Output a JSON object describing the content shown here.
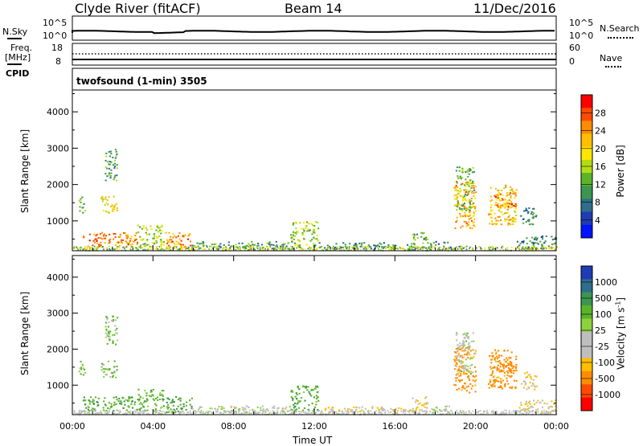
{
  "header": {
    "station": "Clyde River (fitACF)",
    "beam": "Beam 14",
    "date": "11/Dec/2016"
  },
  "nsky_panel": {
    "label": "N.Sky",
    "right_label": "N.Search",
    "left_ticks": [
      "10^5",
      "10^0"
    ],
    "right_ticks": [
      "10^5",
      "10^0"
    ]
  },
  "freq_panel": {
    "label_line1": "Freq.",
    "label_line2": "[MHz]",
    "left_ticks": [
      "18",
      "8"
    ],
    "right_label": "Nave",
    "right_ticks": [
      "60",
      "0"
    ]
  },
  "cpid_panel": {
    "label": "CPID",
    "program": "twofsound (1-min) 3505"
  },
  "chart_data": [
    {
      "type": "heatmap",
      "parameter": "Power",
      "ylabel": "Slant Range [km]",
      "yticks": [
        1000,
        2000,
        3000,
        4000
      ],
      "ylim": [
        180,
        4600
      ],
      "colorbar_label": "Power [dB]",
      "colorbar_ticks": [
        "28",
        "24",
        "20",
        "16",
        "12",
        "8",
        "4"
      ],
      "colorbar_colors": [
        "#ff0000",
        "#ff4a00",
        "#ff8c00",
        "#ffbe00",
        "#ffe600",
        "#b4dc14",
        "#5ab428",
        "#3c9650",
        "#2d6e8c",
        "#1e3cb4",
        "#0014ff"
      ],
      "regions": [
        {
          "t0": 0.5,
          "t1": 3.2,
          "r0": 300,
          "r1": 700,
          "v": 24
        },
        {
          "t0": 0.3,
          "t1": 0.6,
          "r0": 1200,
          "r1": 1700,
          "v": 12
        },
        {
          "t0": 1.4,
          "t1": 2.2,
          "r0": 1200,
          "r1": 1700,
          "v": 18
        },
        {
          "t0": 1.6,
          "t1": 2.2,
          "r0": 2100,
          "r1": 3000,
          "v": 10
        },
        {
          "t0": 3.2,
          "t1": 4.5,
          "r0": 300,
          "r1": 900,
          "v": 14
        },
        {
          "t0": 4.6,
          "t1": 5.9,
          "r0": 250,
          "r1": 700,
          "v": 24
        },
        {
          "t0": 5.9,
          "t1": 10.8,
          "r0": 250,
          "r1": 450,
          "v": 10
        },
        {
          "t0": 10.8,
          "t1": 12.2,
          "r0": 300,
          "r1": 1000,
          "v": 14
        },
        {
          "t0": 12.2,
          "t1": 16.8,
          "r0": 250,
          "r1": 420,
          "v": 8
        },
        {
          "t0": 16.8,
          "t1": 17.6,
          "r0": 250,
          "r1": 700,
          "v": 12
        },
        {
          "t0": 17.6,
          "t1": 18.8,
          "r0": 250,
          "r1": 450,
          "v": 8
        },
        {
          "t0": 18.9,
          "t1": 20.0,
          "r0": 800,
          "r1": 2100,
          "v": 22
        },
        {
          "t0": 19.0,
          "t1": 19.9,
          "r0": 1300,
          "r1": 2500,
          "v": 12
        },
        {
          "t0": 20.6,
          "t1": 22.0,
          "r0": 900,
          "r1": 2000,
          "v": 20
        },
        {
          "t0": 20.9,
          "t1": 22.0,
          "r0": 1400,
          "r1": 1800,
          "v": 24
        },
        {
          "t0": 22.0,
          "t1": 24.0,
          "r0": 250,
          "r1": 600,
          "v": 8
        },
        {
          "t0": 22.2,
          "t1": 23.0,
          "r0": 900,
          "r1": 1400,
          "v": 8
        }
      ]
    },
    {
      "type": "heatmap",
      "parameter": "Velocity",
      "ylabel": "Slant Range [km]",
      "yticks": [
        1000,
        2000,
        3000,
        4000
      ],
      "ylim": [
        180,
        4600
      ],
      "xlabel": "Time UT",
      "xticks": [
        "00:00",
        "04:00",
        "08:00",
        "12:00",
        "16:00",
        "20:00",
        "00:00"
      ],
      "xlim": [
        0,
        24
      ],
      "colorbar_label": "Velocity [m s^-1]",
      "colorbar_ticks": [
        "1000",
        "500",
        "100",
        "25",
        "-25",
        "-100",
        "-500",
        "-1000"
      ],
      "colorbar_colors": [
        "#1e3cb4",
        "#2d6e8c",
        "#3c9650",
        "#5ab428",
        "#8cd23c",
        "#bebebe",
        "#bebebe",
        "#ffbe00",
        "#ff8c00",
        "#ff4a00",
        "#ff0000"
      ],
      "regions": [
        {
          "t0": 0.5,
          "t1": 3.2,
          "r0": 300,
          "r1": 700,
          "v": 120
        },
        {
          "t0": 0.3,
          "t1": 0.6,
          "r0": 1200,
          "r1": 1700,
          "v": 80
        },
        {
          "t0": 1.4,
          "t1": 2.2,
          "r0": 1200,
          "r1": 1700,
          "v": 60
        },
        {
          "t0": 1.6,
          "t1": 2.2,
          "r0": 2100,
          "r1": 3000,
          "v": 60
        },
        {
          "t0": 3.2,
          "t1": 4.5,
          "r0": 300,
          "r1": 900,
          "v": 100
        },
        {
          "t0": 4.6,
          "t1": 5.9,
          "r0": 250,
          "r1": 700,
          "v": 150
        },
        {
          "t0": 5.9,
          "t1": 10.8,
          "r0": 250,
          "r1": 450,
          "v": 0
        },
        {
          "t0": 10.8,
          "t1": 12.2,
          "r0": 300,
          "r1": 1000,
          "v": 120
        },
        {
          "t0": 12.2,
          "t1": 16.8,
          "r0": 250,
          "r1": 420,
          "v": -60
        },
        {
          "t0": 16.8,
          "t1": 17.6,
          "r0": 250,
          "r1": 700,
          "v": -80
        },
        {
          "t0": 17.6,
          "t1": 18.8,
          "r0": 250,
          "r1": 450,
          "v": 0
        },
        {
          "t0": 18.9,
          "t1": 20.0,
          "r0": 800,
          "r1": 2100,
          "v": -200
        },
        {
          "t0": 19.0,
          "t1": 19.9,
          "r0": 1300,
          "r1": 2500,
          "v": 0
        },
        {
          "t0": 20.6,
          "t1": 22.0,
          "r0": 900,
          "r1": 2000,
          "v": -200
        },
        {
          "t0": 20.9,
          "t1": 22.0,
          "r0": 1400,
          "r1": 1800,
          "v": -220
        },
        {
          "t0": 22.0,
          "t1": 24.0,
          "r0": 250,
          "r1": 600,
          "v": -60
        },
        {
          "t0": 22.2,
          "t1": 23.0,
          "r0": 900,
          "r1": 1400,
          "v": -80
        }
      ]
    }
  ]
}
